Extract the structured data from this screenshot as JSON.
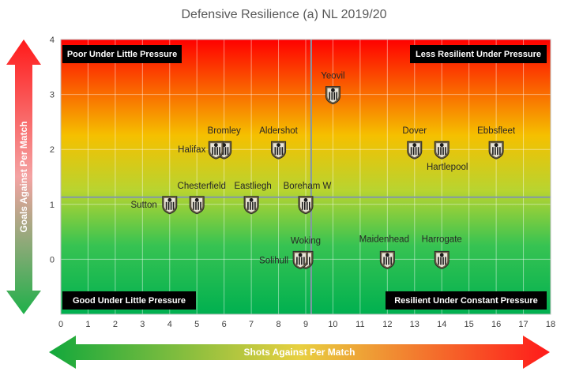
{
  "chart_data": {
    "type": "scatter",
    "title": "Defensive Resilience (a) NL 2019/20",
    "xlabel": "Shots Against Per Match",
    "ylabel": "Goals Against Per Match",
    "xlim": [
      0,
      18
    ],
    "ylim": [
      -1,
      4
    ],
    "x_ticks": [
      "0",
      "1",
      "2",
      "3",
      "4",
      "5",
      "6",
      "7",
      "8",
      "9",
      "10",
      "11",
      "12",
      "13",
      "14",
      "15",
      "16",
      "17",
      "18"
    ],
    "y_ticks": [
      "0",
      "1",
      "2",
      "3",
      "4"
    ],
    "grid": true,
    "reference_lines": {
      "x": 9.2,
      "y": 1.13
    },
    "quadrant_labels": {
      "top_left": "Poor Under Little Pressure",
      "top_right": "Less Resilient Under Pressure",
      "bottom_left": "Good Under Little Pressure",
      "bottom_right": "Resilient Under Constant Pressure"
    },
    "points": [
      {
        "label": "Yeovil",
        "x": 10.0,
        "y": 3.0
      },
      {
        "label": "Bromley",
        "x": 6.0,
        "y": 2.0
      },
      {
        "label": "Halifax",
        "x": 5.7,
        "y": 2.0
      },
      {
        "label": "Aldershot",
        "x": 8.0,
        "y": 2.0
      },
      {
        "label": "Dover",
        "x": 13.0,
        "y": 2.0
      },
      {
        "label": "Hartlepool",
        "x": 14.0,
        "y": 2.0
      },
      {
        "label": "Ebbsfleet",
        "x": 16.0,
        "y": 2.0
      },
      {
        "label": "Sutton",
        "x": 4.0,
        "y": 1.0
      },
      {
        "label": "Chesterfield",
        "x": 5.0,
        "y": 1.0
      },
      {
        "label": "Eastliegh",
        "x": 7.0,
        "y": 1.0
      },
      {
        "label": "Boreham W",
        "x": 9.0,
        "y": 1.0
      },
      {
        "label": "Woking",
        "x": 9.0,
        "y": 0.0
      },
      {
        "label": "Solihull",
        "x": 8.8,
        "y": 0.0
      },
      {
        "label": "Maidenhead",
        "x": 12.0,
        "y": 0.0
      },
      {
        "label": "Harrogate",
        "x": 14.0,
        "y": 0.0
      }
    ]
  }
}
